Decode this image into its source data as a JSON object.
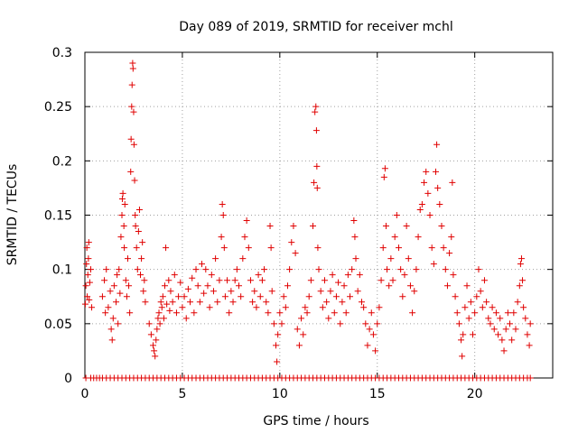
{
  "chart_data": {
    "type": "scatter",
    "title": "Day 089 of 2019, SRMTID for receiver mchl",
    "xlabel": "GPS time / hours",
    "ylabel": "SRMTID / TECUs",
    "xlim": [
      0,
      24
    ],
    "ylim": [
      0,
      0.3
    ],
    "x_ticks": [
      0,
      5,
      10,
      15,
      20
    ],
    "x_tick_labels": [
      "0",
      "5",
      "10",
      "15",
      "20"
    ],
    "y_ticks": [
      0,
      0.05,
      0.1,
      0.15,
      0.2,
      0.25,
      0.3
    ],
    "y_tick_labels": [
      "0",
      "0.05",
      "0.1",
      "0.15",
      "0.2",
      "0.25",
      "0.3"
    ],
    "grid": true,
    "marker": "plus",
    "series_color": "#e00000",
    "series": [
      {
        "name": "SRMTID",
        "points": [
          [
            0.02,
            0.068
          ],
          [
            0.05,
            0.085
          ],
          [
            0.08,
            0.105
          ],
          [
            0.1,
            0.12
          ],
          [
            0.12,
            0.075
          ],
          [
            0.15,
            0.095
          ],
          [
            0.18,
            0.11
          ],
          [
            0.2,
            0.125
          ],
          [
            0.22,
            0.072
          ],
          [
            0.25,
            0.088
          ],
          [
            0.3,
            0.1
          ],
          [
            0.35,
            0.065
          ],
          [
            0.9,
            0.075
          ],
          [
            1.0,
            0.09
          ],
          [
            1.05,
            0.06
          ],
          [
            1.1,
            0.1
          ],
          [
            1.2,
            0.065
          ],
          [
            1.3,
            0.08
          ],
          [
            1.35,
            0.045
          ],
          [
            1.4,
            0.035
          ],
          [
            1.45,
            0.055
          ],
          [
            1.5,
            0.085
          ],
          [
            1.6,
            0.07
          ],
          [
            1.65,
            0.095
          ],
          [
            1.7,
            0.05
          ],
          [
            1.75,
            0.1
          ],
          [
            1.8,
            0.078
          ],
          [
            1.85,
            0.13
          ],
          [
            1.9,
            0.15
          ],
          [
            1.92,
            0.165
          ],
          [
            1.95,
            0.17
          ],
          [
            2.0,
            0.14
          ],
          [
            2.02,
            0.12
          ],
          [
            2.05,
            0.16
          ],
          [
            2.1,
            0.09
          ],
          [
            2.15,
            0.075
          ],
          [
            2.2,
            0.11
          ],
          [
            2.25,
            0.085
          ],
          [
            2.3,
            0.06
          ],
          [
            2.35,
            0.19
          ],
          [
            2.37,
            0.22
          ],
          [
            2.4,
            0.25
          ],
          [
            2.42,
            0.27
          ],
          [
            2.45,
            0.29
          ],
          [
            2.47,
            0.285
          ],
          [
            2.5,
            0.245
          ],
          [
            2.52,
            0.215
          ],
          [
            2.55,
            0.182
          ],
          [
            2.58,
            0.15
          ],
          [
            2.6,
            0.14
          ],
          [
            2.65,
            0.12
          ],
          [
            2.7,
            0.1
          ],
          [
            2.75,
            0.135
          ],
          [
            2.8,
            0.155
          ],
          [
            2.85,
            0.095
          ],
          [
            2.9,
            0.11
          ],
          [
            2.95,
            0.125
          ],
          [
            3.0,
            0.08
          ],
          [
            3.05,
            0.09
          ],
          [
            3.1,
            0.07
          ],
          [
            3.3,
            0.05
          ],
          [
            3.4,
            0.04
          ],
          [
            3.5,
            0.03
          ],
          [
            3.55,
            0.025
          ],
          [
            3.6,
            0.02
          ],
          [
            3.65,
            0.035
          ],
          [
            3.7,
            0.045
          ],
          [
            3.75,
            0.055
          ],
          [
            3.8,
            0.06
          ],
          [
            3.85,
            0.05
          ],
          [
            3.9,
            0.07
          ],
          [
            3.95,
            0.065
          ],
          [
            4.0,
            0.075
          ],
          [
            4.05,
            0.055
          ],
          [
            4.1,
            0.085
          ],
          [
            4.15,
            0.12
          ],
          [
            4.2,
            0.068
          ],
          [
            4.3,
            0.09
          ],
          [
            4.35,
            0.062
          ],
          [
            4.4,
            0.08
          ],
          [
            4.5,
            0.07
          ],
          [
            4.6,
            0.095
          ],
          [
            4.7,
            0.06
          ],
          [
            4.8,
            0.075
          ],
          [
            4.9,
            0.088
          ],
          [
            5.0,
            0.065
          ],
          [
            5.1,
            0.075
          ],
          [
            5.2,
            0.055
          ],
          [
            5.3,
            0.082
          ],
          [
            5.4,
            0.07
          ],
          [
            5.5,
            0.092
          ],
          [
            5.6,
            0.06
          ],
          [
            5.7,
            0.1
          ],
          [
            5.8,
            0.085
          ],
          [
            5.9,
            0.07
          ],
          [
            6.0,
            0.105
          ],
          [
            6.1,
            0.078
          ],
          [
            6.2,
            0.1
          ],
          [
            6.3,
            0.085
          ],
          [
            6.4,
            0.065
          ],
          [
            6.5,
            0.095
          ],
          [
            6.6,
            0.08
          ],
          [
            6.7,
            0.11
          ],
          [
            6.8,
            0.07
          ],
          [
            6.9,
            0.09
          ],
          [
            7.0,
            0.13
          ],
          [
            7.05,
            0.16
          ],
          [
            7.1,
            0.15
          ],
          [
            7.15,
            0.12
          ],
          [
            7.2,
            0.075
          ],
          [
            7.3,
            0.09
          ],
          [
            7.4,
            0.06
          ],
          [
            7.5,
            0.08
          ],
          [
            7.6,
            0.07
          ],
          [
            7.7,
            0.09
          ],
          [
            7.8,
            0.1
          ],
          [
            7.9,
            0.085
          ],
          [
            8.0,
            0.075
          ],
          [
            8.1,
            0.11
          ],
          [
            8.2,
            0.13
          ],
          [
            8.3,
            0.145
          ],
          [
            8.4,
            0.12
          ],
          [
            8.5,
            0.09
          ],
          [
            8.6,
            0.07
          ],
          [
            8.7,
            0.08
          ],
          [
            8.8,
            0.065
          ],
          [
            8.9,
            0.095
          ],
          [
            9.0,
            0.075
          ],
          [
            9.1,
            0.09
          ],
          [
            9.2,
            0.1
          ],
          [
            9.3,
            0.07
          ],
          [
            9.4,
            0.06
          ],
          [
            9.5,
            0.14
          ],
          [
            9.55,
            0.12
          ],
          [
            9.6,
            0.08
          ],
          [
            9.7,
            0.05
          ],
          [
            9.8,
            0.03
          ],
          [
            9.85,
            0.015
          ],
          [
            9.9,
            0.04
          ],
          [
            10.0,
            0.06
          ],
          [
            10.1,
            0.05
          ],
          [
            10.2,
            0.075
          ],
          [
            10.3,
            0.065
          ],
          [
            10.4,
            0.085
          ],
          [
            10.5,
            0.1
          ],
          [
            10.6,
            0.125
          ],
          [
            10.7,
            0.14
          ],
          [
            10.8,
            0.115
          ],
          [
            10.9,
            0.045
          ],
          [
            11.0,
            0.03
          ],
          [
            11.1,
            0.055
          ],
          [
            11.2,
            0.04
          ],
          [
            11.3,
            0.065
          ],
          [
            11.4,
            0.06
          ],
          [
            11.5,
            0.075
          ],
          [
            11.6,
            0.09
          ],
          [
            11.7,
            0.14
          ],
          [
            11.75,
            0.18
          ],
          [
            11.8,
            0.245
          ],
          [
            11.85,
            0.25
          ],
          [
            11.88,
            0.228
          ],
          [
            11.9,
            0.195
          ],
          [
            11.92,
            0.175
          ],
          [
            11.95,
            0.12
          ],
          [
            12.0,
            0.1
          ],
          [
            12.1,
            0.08
          ],
          [
            12.2,
            0.065
          ],
          [
            12.3,
            0.09
          ],
          [
            12.4,
            0.07
          ],
          [
            12.5,
            0.055
          ],
          [
            12.6,
            0.08
          ],
          [
            12.7,
            0.095
          ],
          [
            12.8,
            0.06
          ],
          [
            12.9,
            0.075
          ],
          [
            13.0,
            0.088
          ],
          [
            13.1,
            0.05
          ],
          [
            13.2,
            0.07
          ],
          [
            13.3,
            0.085
          ],
          [
            13.4,
            0.06
          ],
          [
            13.5,
            0.095
          ],
          [
            13.6,
            0.075
          ],
          [
            13.7,
            0.1
          ],
          [
            13.8,
            0.145
          ],
          [
            13.85,
            0.13
          ],
          [
            13.9,
            0.11
          ],
          [
            14.0,
            0.08
          ],
          [
            14.1,
            0.095
          ],
          [
            14.2,
            0.07
          ],
          [
            14.3,
            0.065
          ],
          [
            14.4,
            0.05
          ],
          [
            14.5,
            0.03
          ],
          [
            14.6,
            0.045
          ],
          [
            14.7,
            0.06
          ],
          [
            14.8,
            0.04
          ],
          [
            14.9,
            0.025
          ],
          [
            15.0,
            0.05
          ],
          [
            15.1,
            0.065
          ],
          [
            15.2,
            0.09
          ],
          [
            15.3,
            0.12
          ],
          [
            15.35,
            0.185
          ],
          [
            15.4,
            0.193
          ],
          [
            15.45,
            0.14
          ],
          [
            15.5,
            0.1
          ],
          [
            15.6,
            0.085
          ],
          [
            15.7,
            0.11
          ],
          [
            15.8,
            0.09
          ],
          [
            15.9,
            0.13
          ],
          [
            16.0,
            0.15
          ],
          [
            16.1,
            0.12
          ],
          [
            16.2,
            0.1
          ],
          [
            16.3,
            0.075
          ],
          [
            16.4,
            0.095
          ],
          [
            16.5,
            0.14
          ],
          [
            16.6,
            0.11
          ],
          [
            16.7,
            0.085
          ],
          [
            16.8,
            0.06
          ],
          [
            16.9,
            0.08
          ],
          [
            17.0,
            0.1
          ],
          [
            17.1,
            0.13
          ],
          [
            17.2,
            0.155
          ],
          [
            17.3,
            0.16
          ],
          [
            17.4,
            0.18
          ],
          [
            17.5,
            0.19
          ],
          [
            17.6,
            0.17
          ],
          [
            17.7,
            0.15
          ],
          [
            17.8,
            0.12
          ],
          [
            17.9,
            0.105
          ],
          [
            18.0,
            0.19
          ],
          [
            18.05,
            0.215
          ],
          [
            18.1,
            0.175
          ],
          [
            18.2,
            0.16
          ],
          [
            18.3,
            0.14
          ],
          [
            18.4,
            0.12
          ],
          [
            18.5,
            0.1
          ],
          [
            18.6,
            0.085
          ],
          [
            18.7,
            0.115
          ],
          [
            18.8,
            0.13
          ],
          [
            18.85,
            0.18
          ],
          [
            18.9,
            0.095
          ],
          [
            19.0,
            0.075
          ],
          [
            19.1,
            0.06
          ],
          [
            19.2,
            0.05
          ],
          [
            19.3,
            0.035
          ],
          [
            19.35,
            0.02
          ],
          [
            19.4,
            0.04
          ],
          [
            19.5,
            0.065
          ],
          [
            19.6,
            0.085
          ],
          [
            19.7,
            0.055
          ],
          [
            19.8,
            0.07
          ],
          [
            19.9,
            0.04
          ],
          [
            20.0,
            0.06
          ],
          [
            20.1,
            0.075
          ],
          [
            20.2,
            0.1
          ],
          [
            20.3,
            0.08
          ],
          [
            20.4,
            0.065
          ],
          [
            20.5,
            0.09
          ],
          [
            20.6,
            0.07
          ],
          [
            20.7,
            0.055
          ],
          [
            20.8,
            0.05
          ],
          [
            20.9,
            0.065
          ],
          [
            21.0,
            0.045
          ],
          [
            21.1,
            0.06
          ],
          [
            21.2,
            0.04
          ],
          [
            21.3,
            0.055
          ],
          [
            21.4,
            0.035
          ],
          [
            21.5,
            0.025
          ],
          [
            21.6,
            0.045
          ],
          [
            21.7,
            0.06
          ],
          [
            21.8,
            0.05
          ],
          [
            21.9,
            0.035
          ],
          [
            22.0,
            0.06
          ],
          [
            22.1,
            0.045
          ],
          [
            22.2,
            0.07
          ],
          [
            22.3,
            0.085
          ],
          [
            22.35,
            0.105
          ],
          [
            22.4,
            0.11
          ],
          [
            22.45,
            0.09
          ],
          [
            22.5,
            0.065
          ],
          [
            22.6,
            0.055
          ],
          [
            22.7,
            0.04
          ],
          [
            22.8,
            0.03
          ],
          [
            22.85,
            0.05
          ]
        ],
        "zero_points_x": [
          0.05,
          0.3,
          0.45,
          0.6,
          0.75,
          0.9,
          1.1,
          1.3,
          1.5,
          1.7,
          1.9,
          2.1,
          2.3,
          2.5,
          2.7,
          2.9,
          3.1,
          3.3,
          3.5,
          3.7,
          3.9,
          4.1,
          4.3,
          4.5,
          4.7,
          4.9,
          5.1,
          5.3,
          5.5,
          5.7,
          5.9,
          6.1,
          6.3,
          6.5,
          6.7,
          6.9,
          7.1,
          7.3,
          7.5,
          7.7,
          7.9,
          8.1,
          8.3,
          8.5,
          8.7,
          8.9,
          9.1,
          9.3,
          9.5,
          9.7,
          9.9,
          10.1,
          10.3,
          10.5,
          10.7,
          10.9,
          11.1,
          11.3,
          11.5,
          11.7,
          11.9,
          12.1,
          12.3,
          12.5,
          12.7,
          12.9,
          13.1,
          13.3,
          13.5,
          13.7,
          13.9,
          14.1,
          14.3,
          14.5,
          14.7,
          14.9,
          15.1,
          15.3,
          15.5,
          15.7,
          15.9,
          16.1,
          16.3,
          16.5,
          16.7,
          16.9,
          17.1,
          17.3,
          17.5,
          17.7,
          17.9,
          18.1,
          18.3,
          18.5,
          18.7,
          18.9,
          19.1,
          19.3,
          19.5,
          19.7,
          19.9,
          20.1,
          20.3,
          20.5,
          20.7,
          20.9,
          21.1,
          21.3,
          21.5,
          21.7,
          21.9,
          22.1,
          22.3,
          22.5,
          22.7,
          22.85
        ]
      }
    ]
  }
}
